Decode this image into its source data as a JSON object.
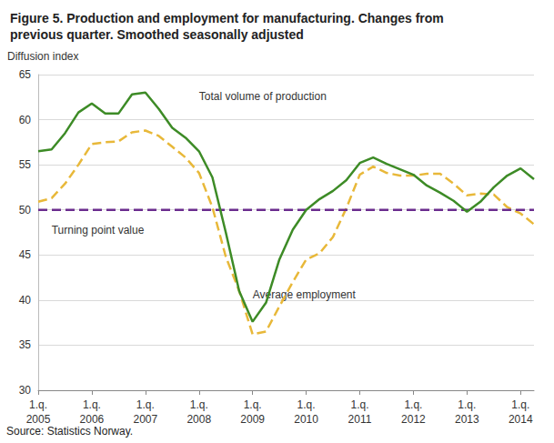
{
  "chart_data": {
    "type": "line",
    "title": "Figure 5. Production and employment for manufacturing. Changes from\nprevious quarter. Smoothed seasonally adjusted",
    "ylabel": "Diffusion index",
    "source": "Source: Statistics Norway.",
    "categories": [
      "1.q.\n2005",
      null,
      null,
      null,
      "1.q.\n2006",
      null,
      null,
      null,
      "1.q.\n2007",
      null,
      null,
      null,
      "1.q.\n2008",
      null,
      null,
      null,
      "1.q.\n2009",
      null,
      null,
      null,
      "1.q.\n2010",
      null,
      null,
      null,
      "1.q.\n2011",
      null,
      null,
      null,
      "1.q.\n2012",
      null,
      null,
      null,
      "1.q.\n2013",
      null,
      null,
      null,
      "1.q.\n2014",
      null
    ],
    "series": [
      {
        "name": "Total volume of production",
        "color": "#3d8b26",
        "line_style": "solid",
        "values": [
          56.5,
          56.7,
          58.5,
          60.8,
          61.8,
          60.7,
          60.7,
          62.8,
          63.0,
          61.2,
          59.1,
          58.0,
          56.5,
          53.6,
          47.5,
          41.0,
          37.6,
          39.7,
          44.5,
          47.8,
          50.0,
          51.2,
          52.1,
          53.3,
          55.2,
          55.8,
          55.1,
          54.5,
          53.9,
          52.7,
          51.9,
          51.0,
          49.8,
          50.9,
          52.5,
          53.8,
          54.6,
          53.4
        ]
      },
      {
        "name": "Average employment",
        "color": "#e8b839",
        "line_style": "dashed",
        "values": [
          50.9,
          51.3,
          52.9,
          55.0,
          57.3,
          57.5,
          57.6,
          58.6,
          58.8,
          58.2,
          57.0,
          55.8,
          54.1,
          50.3,
          44.8,
          41.0,
          36.2,
          36.5,
          39.3,
          42.0,
          44.5,
          45.2,
          47.0,
          50.2,
          53.9,
          54.8,
          54.1,
          53.8,
          53.8,
          54.0,
          54.0,
          52.9,
          51.6,
          51.8,
          51.7,
          50.3,
          49.6,
          48.4
        ]
      },
      {
        "name": "Turning point value",
        "color": "#6b2d8e",
        "line_style": "dashed",
        "values": [
          50,
          50,
          50,
          50,
          50,
          50,
          50,
          50,
          50,
          50,
          50,
          50,
          50,
          50,
          50,
          50,
          50,
          50,
          50,
          50,
          50,
          50,
          50,
          50,
          50,
          50,
          50,
          50,
          50,
          50,
          50,
          50,
          50,
          50,
          50,
          50,
          50,
          50
        ]
      }
    ],
    "ylim": [
      30,
      65
    ],
    "yticks": [
      30,
      35,
      40,
      45,
      50,
      55,
      60,
      65
    ],
    "grid": true
  }
}
